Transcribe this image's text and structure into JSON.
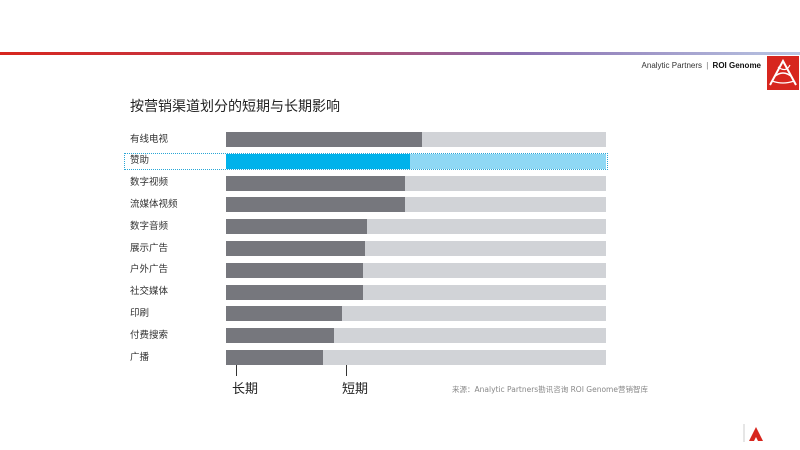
{
  "header": {
    "brand_left": "Analytic Partners",
    "brand_sep": "|",
    "brand_right": "ROI Genome"
  },
  "chart_data": {
    "type": "bar",
    "title": "按营销渠道划分的短期与长期影响",
    "categories": [
      "有线电视",
      "赞助",
      "数字视频",
      "流媒体视频",
      "数字音频",
      "展示广告",
      "户外广告",
      "社交媒体",
      "印刷",
      "付费搜索",
      "广播"
    ],
    "series": [
      {
        "name": "长期",
        "values": [
          51.5,
          48.5,
          47,
          47,
          37,
          36.5,
          36,
          36,
          30.5,
          28.5,
          25.5
        ]
      },
      {
        "name": "短期",
        "values": [
          48.5,
          51.5,
          53,
          53,
          63,
          63.5,
          64,
          64,
          69.5,
          71.5,
          74.5
        ]
      }
    ],
    "stacked": true,
    "orientation": "horizontal",
    "xlim": [
      0,
      100
    ],
    "highlighted_category": "赞助",
    "legend": [
      "长期",
      "短期"
    ],
    "source": "来源：Analytic Partners勘讯咨询 ROI Genome营销智库"
  },
  "colors": {
    "long_term": "#76777d",
    "short_term": "#d1d3d7",
    "highlight_long": "#00b2eb",
    "highlight_short": "#8fd8f4",
    "accent": "#d7261e"
  }
}
